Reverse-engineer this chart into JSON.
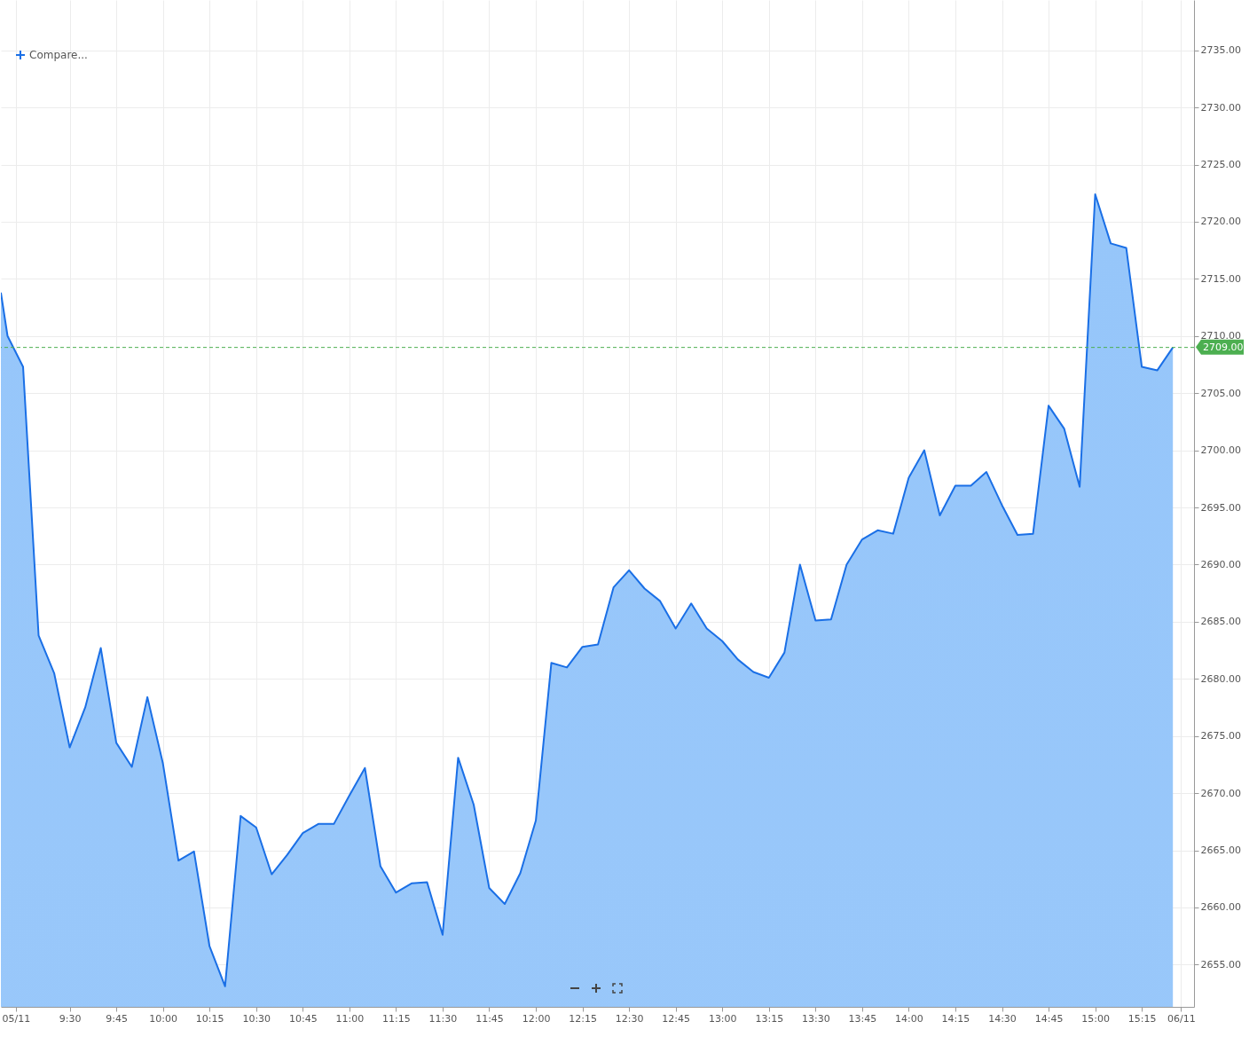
{
  "chart_data": {
    "type": "area",
    "x": [
      9.131,
      9.1667,
      9.25,
      9.3333,
      9.4167,
      9.5,
      9.5833,
      9.6667,
      9.75,
      9.8333,
      9.9167,
      10,
      10.0833,
      10.1667,
      10.25,
      10.3333,
      10.4167,
      10.5,
      10.5833,
      10.6667,
      10.75,
      10.8333,
      10.9167,
      11,
      11.0833,
      11.1667,
      11.25,
      11.3333,
      11.4167,
      11.5,
      11.5833,
      11.6667,
      11.75,
      11.8333,
      11.9167,
      12,
      12.0833,
      12.1667,
      12.25,
      12.3333,
      12.4167,
      12.5,
      12.5833,
      12.6667,
      12.75,
      12.8333,
      12.9167,
      13,
      13.0833,
      13.1667,
      13.25,
      13.3333,
      13.4167,
      13.5,
      13.5833,
      13.6667,
      13.75,
      13.8333,
      13.9167,
      14,
      14.0833,
      14.1667,
      14.25,
      14.3333,
      14.4167,
      14.5,
      14.5833,
      14.6667,
      14.75,
      14.8333,
      14.9167,
      15,
      15.0833,
      15.1667,
      15.25,
      15.3333,
      15.4167
    ],
    "series": [
      {
        "color": "#1a6fe6",
        "values": [
          2713.8,
          2710.0,
          2707.3,
          2683.8,
          2680.5,
          2674.0,
          2677.5,
          2682.7,
          2674.4,
          2672.3,
          2678.4,
          2672.6,
          2664.1,
          2664.9,
          2656.6,
          2653.1,
          2668.0,
          2667.0,
          2662.9,
          2664.6,
          2666.5,
          2667.3,
          2667.3,
          2669.8,
          2672.2,
          2663.6,
          2661.3,
          2662.1,
          2662.2,
          2657.6,
          2673.1,
          2669.0,
          2661.7,
          2660.3,
          2663.0,
          2667.6,
          2681.4,
          2681.0,
          2682.8,
          2683.0,
          2688.0,
          2689.5,
          2687.9,
          2686.8,
          2684.4,
          2686.6,
          2684.4,
          2683.3,
          2681.7,
          2680.6,
          2680.1,
          2682.3,
          2690.0,
          2685.1,
          2685.2,
          2690.0,
          2692.2,
          2693.0,
          2692.7,
          2697.6,
          2700.0,
          2694.3,
          2696.9,
          2696.9,
          2698.1,
          2695.2,
          2692.6,
          2692.7,
          2703.9,
          2701.9,
          2696.8,
          2722.4,
          2718.1,
          2717.7,
          2707.3,
          2707.0,
          2709.0
        ]
      }
    ],
    "xlim": [
      9.131,
      15.53
    ],
    "xticks": [
      {
        "value": 9.211,
        "label": "05/11"
      },
      {
        "value": 9.5,
        "label": "9:30"
      },
      {
        "value": 9.75,
        "label": "9:45"
      },
      {
        "value": 10,
        "label": "10:00"
      },
      {
        "value": 10.25,
        "label": "10:15"
      },
      {
        "value": 10.5,
        "label": "10:30"
      },
      {
        "value": 10.75,
        "label": "10:45"
      },
      {
        "value": 11,
        "label": "11:00"
      },
      {
        "value": 11.25,
        "label": "11:15"
      },
      {
        "value": 11.5,
        "label": "11:30"
      },
      {
        "value": 11.75,
        "label": "11:45"
      },
      {
        "value": 12,
        "label": "12:00"
      },
      {
        "value": 12.25,
        "label": "12:15"
      },
      {
        "value": 12.5,
        "label": "12:30"
      },
      {
        "value": 12.75,
        "label": "12:45"
      },
      {
        "value": 13,
        "label": "13:00"
      },
      {
        "value": 13.25,
        "label": "13:15"
      },
      {
        "value": 13.5,
        "label": "13:30"
      },
      {
        "value": 13.75,
        "label": "13:45"
      },
      {
        "value": 14,
        "label": "14:00"
      },
      {
        "value": 14.25,
        "label": "14:15"
      },
      {
        "value": 14.5,
        "label": "14:30"
      },
      {
        "value": 14.75,
        "label": "14:45"
      },
      {
        "value": 15,
        "label": "15:00"
      },
      {
        "value": 15.25,
        "label": "15:15"
      },
      {
        "value": 15.46,
        "label": "06/11"
      }
    ],
    "ylim": [
      2651.3,
      2739.4
    ],
    "yticks": [
      {
        "value": 2655,
        "label": "2655.00"
      },
      {
        "value": 2660,
        "label": "2660.00"
      },
      {
        "value": 2665,
        "label": "2665.00"
      },
      {
        "value": 2670,
        "label": "2670.00"
      },
      {
        "value": 2675,
        "label": "2675.00"
      },
      {
        "value": 2680,
        "label": "2680.00"
      },
      {
        "value": 2685,
        "label": "2685.00"
      },
      {
        "value": 2690,
        "label": "2690.00"
      },
      {
        "value": 2695,
        "label": "2695.00"
      },
      {
        "value": 2700,
        "label": "2700.00"
      },
      {
        "value": 2705,
        "label": "2705.00"
      },
      {
        "value": 2710,
        "label": "2710.00"
      },
      {
        "value": 2715,
        "label": "2715.00"
      },
      {
        "value": 2720,
        "label": "2720.00"
      },
      {
        "value": 2725,
        "label": "2725.00"
      },
      {
        "value": 2730,
        "label": "2730.00"
      },
      {
        "value": 2735,
        "label": "2735.00"
      }
    ],
    "ref_lines": [
      {
        "axis": "y",
        "value": 2709,
        "label": "2709.00",
        "color": "#4caf50",
        "line_style": "dashed"
      }
    ],
    "annotations": [
      "Compare..."
    ],
    "grid": true
  }
}
